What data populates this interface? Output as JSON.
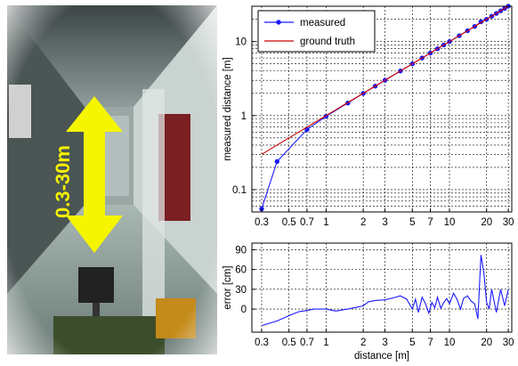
{
  "photo": {
    "label": "0.3-30m",
    "description_icon": "double-arrow-icon",
    "arrow_color": "#f5f500"
  },
  "chart_data": [
    {
      "type": "line",
      "xscale": "log",
      "yscale": "log",
      "xlim": [
        0.25,
        32
      ],
      "ylim": [
        0.05,
        30
      ],
      "ylabel": "measured distance [m]",
      "xlabel": "",
      "grid": true,
      "legend_position": "top-left",
      "x_ticks": [
        0.3,
        0.5,
        0.7,
        1,
        2,
        3,
        5,
        7,
        10,
        20,
        30
      ],
      "x_tick_labels": [
        "0.3",
        "0.5",
        "0.7",
        "1",
        "2",
        "3",
        "5",
        "7",
        "10",
        "20",
        "30"
      ],
      "y_ticks": [
        0.1,
        1,
        10
      ],
      "y_tick_labels": [
        "0.1",
        "1",
        "10"
      ],
      "series": [
        {
          "name": "measured",
          "color": "#1a1aff",
          "marker": "dot",
          "x": [
            0.3,
            0.4,
            0.7,
            1.0,
            1.5,
            2,
            2.5,
            3,
            4,
            5,
            6,
            7,
            8,
            9,
            10,
            12,
            14,
            16,
            18,
            20,
            22,
            24,
            26,
            28,
            30
          ],
          "y": [
            0.055,
            0.24,
            0.65,
            0.98,
            1.48,
            2.0,
            2.5,
            3.0,
            4.0,
            5.0,
            6.0,
            7.0,
            8.0,
            9.0,
            10.0,
            12.0,
            14.0,
            16.0,
            18.5,
            20.0,
            22.0,
            24.0,
            26.0,
            28.0,
            30.0
          ]
        },
        {
          "name": "ground truth",
          "color": "#cc0000",
          "marker": "none",
          "x": [
            0.3,
            30
          ],
          "y": [
            0.3,
            30
          ]
        }
      ]
    },
    {
      "type": "line",
      "xscale": "log",
      "yscale": "linear",
      "xlim": [
        0.25,
        32
      ],
      "ylim": [
        -35,
        100
      ],
      "ylabel": "error [cm]",
      "xlabel": "distance [m]",
      "grid": true,
      "x_ticks": [
        0.3,
        0.5,
        0.7,
        1,
        2,
        3,
        5,
        7,
        10,
        20,
        30
      ],
      "x_tick_labels": [
        "0.3",
        "0.5",
        "0.7",
        "1",
        "2",
        "3",
        "5",
        "7",
        "10",
        "20",
        "30"
      ],
      "y_ticks": [
        0,
        30,
        60,
        90
      ],
      "y_tick_labels": [
        "0",
        "30",
        "60",
        "90"
      ],
      "series": [
        {
          "color": "#1a1aff",
          "marker": "none",
          "x": [
            0.3,
            0.4,
            0.5,
            0.6,
            0.7,
            0.8,
            1.0,
            1.2,
            1.5,
            1.8,
            2.0,
            2.2,
            2.5,
            3.0,
            3.5,
            4.0,
            4.5,
            5.0,
            5.3,
            5.6,
            6.0,
            6.4,
            6.8,
            7.2,
            7.6,
            8.0,
            8.5,
            9.0,
            9.5,
            10,
            10.8,
            11.5,
            12.3,
            13,
            14,
            15,
            16,
            17,
            18,
            19,
            20,
            21,
            22,
            24,
            26,
            28,
            30
          ],
          "y": [
            -25,
            -18,
            -10,
            -4,
            -2,
            0,
            0,
            -3,
            0,
            3,
            5,
            11,
            13,
            14,
            17,
            20,
            15,
            0,
            15,
            -5,
            18,
            8,
            -6,
            10,
            2,
            18,
            1,
            10,
            16,
            8,
            24,
            15,
            0,
            16,
            20,
            12,
            8,
            -15,
            82,
            55,
            10,
            0,
            30,
            -5,
            30,
            5,
            30
          ]
        }
      ]
    }
  ]
}
